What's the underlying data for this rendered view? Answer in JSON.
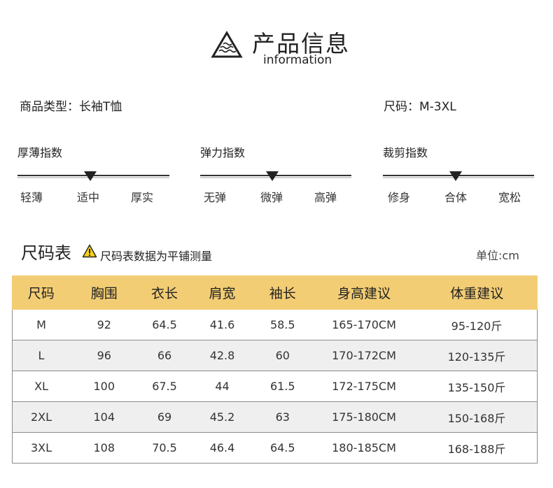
{
  "header": {
    "title": "产品信息",
    "subtitle": "information",
    "icon": "triangle-waves-icon"
  },
  "info": {
    "type_label": "商品类型：长袖T恤",
    "size_label": "尺码：M-3XL"
  },
  "indicators": [
    {
      "title": "厚薄指数",
      "options": [
        "轻薄",
        "适中",
        "厚实"
      ],
      "selected": "适中"
    },
    {
      "title": "弹力指数",
      "options": [
        "无弹",
        "微弹",
        "高弹"
      ],
      "selected": "微弹"
    },
    {
      "title": "裁剪指数",
      "options": [
        "修身",
        "合体",
        "宽松"
      ],
      "selected": "合体"
    }
  ],
  "size_chart": {
    "title": "尺码表",
    "note": "尺码表数据为平铺测量",
    "unit": "单位:cm",
    "warning_icon": "warning-icon",
    "accent_color": "#f3cd74",
    "headers": [
      "尺码",
      "胸围",
      "衣长",
      "肩宽",
      "袖长",
      "身高建议",
      "体重建议"
    ],
    "rows": [
      [
        "M",
        "92",
        "64.5",
        "41.6",
        "58.5",
        "165-170CM",
        "95-120斤"
      ],
      [
        "L",
        "96",
        "66",
        "42.8",
        "60",
        "170-172CM",
        "120-135斤"
      ],
      [
        "XL",
        "100",
        "67.5",
        "44",
        "61.5",
        "172-175CM",
        "135-150斤"
      ],
      [
        "2XL",
        "104",
        "69",
        "45.2",
        "63",
        "175-180CM",
        "150-168斤"
      ],
      [
        "3XL",
        "108",
        "70.5",
        "46.4",
        "64.5",
        "180-185CM",
        "168-188斤"
      ]
    ]
  }
}
